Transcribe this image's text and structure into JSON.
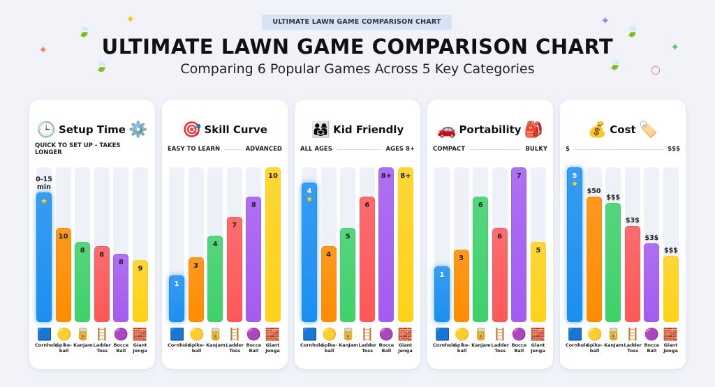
{
  "header": {
    "badge": "ULTIMATE LAWN GAME COMPARISON CHART",
    "title": "ULTIMATE LAWN GAME COMPARISON CHART",
    "subtitle": "Comparing 6 Popular Games Across 5 Key Categories"
  },
  "colors": [
    "#1c8ff0",
    "#ff8c00",
    "#3fd16a",
    "#ff5858",
    "#a45cf0",
    "#ffd21a"
  ],
  "games": [
    {
      "name": "Cornhole",
      "icon": "cornhole-board-icon"
    },
    {
      "name": "Spike-ball",
      "icon": "spikeball-icon"
    },
    {
      "name": "KanJam",
      "icon": "kanjam-can-icon"
    },
    {
      "name": "Ladder Toss",
      "icon": "ladder-icon"
    },
    {
      "name": "Bocce Ball",
      "icon": "bocce-ball-icon"
    },
    {
      "name": "Giant Jenga",
      "icon": "jenga-tower-icon"
    }
  ],
  "chart_data": [
    {
      "type": "bar",
      "title": "Setup Time",
      "icon": "clock-gears-icon",
      "axis_left": "QUICK TO SET UP - TAKES LONGER",
      "axis_right": "",
      "levels": [
        0.84,
        0.61,
        0.52,
        0.49,
        0.44,
        0.4
      ],
      "labels": [
        "0-15 min",
        "10",
        "8",
        "8",
        "8",
        "9"
      ],
      "label_pos": [
        "above",
        "inside",
        "inside",
        "inside",
        "inside",
        "inside"
      ],
      "star": [
        true,
        false,
        false,
        false,
        false,
        false
      ]
    },
    {
      "type": "bar",
      "title": "Skill Curve",
      "icon": "target-icon",
      "axis_left": "EASY TO LEARN",
      "axis_right": "ADVANCED",
      "levels": [
        0.3,
        0.42,
        0.56,
        0.68,
        0.81,
        1.0
      ],
      "labels": [
        "1",
        "3",
        "4",
        "7",
        "8",
        "10"
      ],
      "label_pos": [
        "inside",
        "inside",
        "inside",
        "inside",
        "inside",
        "inside"
      ],
      "star": [
        false,
        false,
        false,
        false,
        false,
        false
      ]
    },
    {
      "type": "bar",
      "title": "Kid Friendly",
      "icon": "family-icon",
      "axis_left": "ALL AGES",
      "axis_right": "AGES 8+",
      "levels": [
        0.9,
        0.49,
        0.61,
        0.81,
        1.0,
        1.0
      ],
      "labels": [
        "4",
        "4",
        "5",
        "6",
        "8+",
        "8+"
      ],
      "label_pos": [
        "inside",
        "inside",
        "inside",
        "inside",
        "inside",
        "inside"
      ],
      "star": [
        true,
        false,
        false,
        false,
        false,
        false
      ]
    },
    {
      "type": "bar",
      "title": "Portability",
      "icon": "car-trunk-backpack-icon",
      "axis_left": "COMPACT",
      "axis_right": "BULKY",
      "levels": [
        0.36,
        0.47,
        0.81,
        0.61,
        1.0,
        0.52
      ],
      "labels": [
        "1",
        "3",
        "6",
        "6",
        "7",
        "5"
      ],
      "label_pos": [
        "inside",
        "inside",
        "inside",
        "inside",
        "inside",
        "inside"
      ],
      "star": [
        false,
        false,
        false,
        false,
        false,
        false
      ]
    },
    {
      "type": "bar",
      "title": "Cost",
      "icon": "coins-price-tag-icon",
      "axis_left": "$",
      "axis_right": "$$$",
      "levels": [
        1.0,
        0.81,
        0.77,
        0.62,
        0.51,
        0.43
      ],
      "labels": [
        "5",
        "$50",
        "$$$",
        "$3$",
        "$3$",
        "$$$"
      ],
      "label_pos": [
        "inside",
        "above",
        "above",
        "above",
        "above",
        "above"
      ],
      "star": [
        true,
        false,
        false,
        false,
        false,
        false
      ]
    }
  ]
}
